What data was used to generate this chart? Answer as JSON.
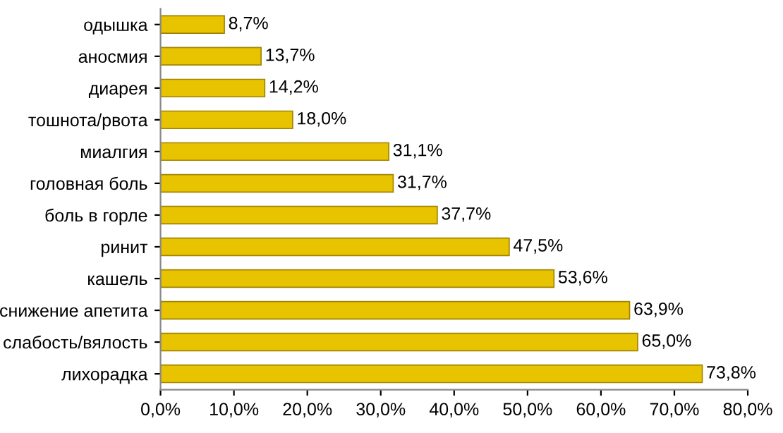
{
  "chart_data": {
    "type": "bar",
    "orientation": "horizontal",
    "categories": [
      "одышка",
      "аносмия",
      "диарея",
      "тошнота/рвота",
      "миалгия",
      "головная боль",
      "боль в горле",
      "ринит",
      "кашель",
      "снижение апетита",
      "слабость/вялость",
      "лихорадка"
    ],
    "values": [
      8.7,
      13.7,
      14.2,
      18.0,
      31.1,
      31.7,
      37.7,
      47.5,
      53.6,
      63.9,
      65.0,
      73.8
    ],
    "value_labels": [
      "8,7%",
      "13,7%",
      "14,2%",
      "18,0%",
      "31,1%",
      "31,7%",
      "37,7%",
      "47,5%",
      "53,6%",
      "63,9%",
      "65,0%",
      "73,8%"
    ],
    "color": "#e8c400",
    "xlim": [
      0,
      80
    ],
    "xticks": [
      {
        "value": 0,
        "label": "0,0%"
      },
      {
        "value": 10,
        "label": "10,0%"
      },
      {
        "value": 20,
        "label": "20,0%"
      },
      {
        "value": 30,
        "label": "30,0%"
      },
      {
        "value": 40,
        "label": "40,0%"
      },
      {
        "value": 50,
        "label": "50,0%"
      },
      {
        "value": 60,
        "label": "60,0%"
      },
      {
        "value": 70,
        "label": "70,0%"
      },
      {
        "value": 80,
        "label": "80,0%"
      }
    ],
    "grid": false,
    "legend": false
  }
}
